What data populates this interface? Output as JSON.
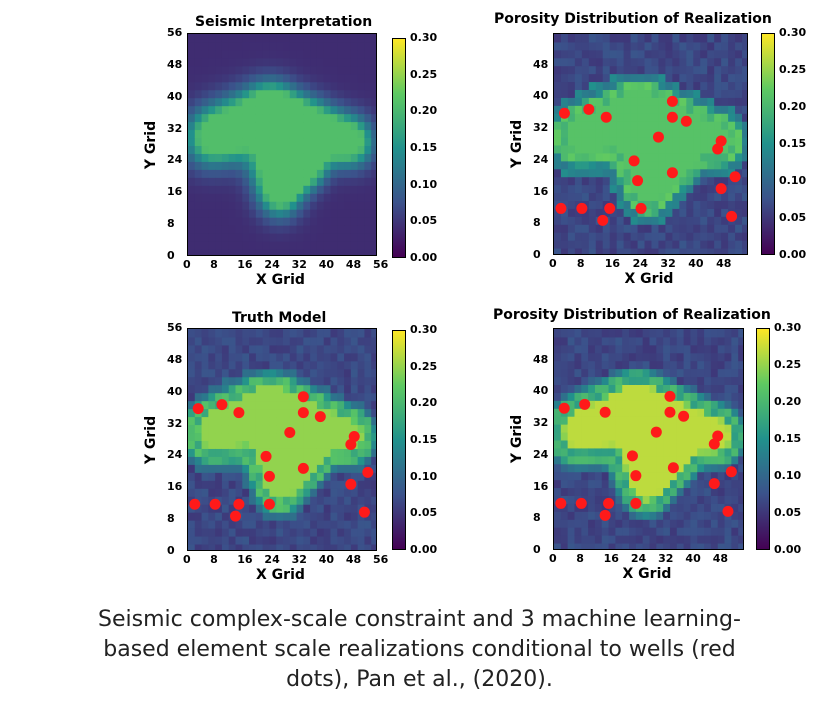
{
  "caption": {
    "line1": "Seismic complex-scale constraint and 3 machine learning-",
    "line2": "based element scale realizations conditional to wells (red",
    "line3": "dots), Pan et al., (2020)."
  },
  "chart_data": [
    {
      "type": "heatmap",
      "title": "Seismic Interpretation",
      "xlabel": "X Grid",
      "ylabel": "Y Grid",
      "xlim": [
        0,
        56
      ],
      "ylim": [
        0,
        56
      ],
      "xticks": [
        "0",
        "8",
        "16",
        "24",
        "32",
        "40",
        "48",
        "56"
      ],
      "yticks": [
        "0",
        "8",
        "16",
        "24",
        "32",
        "40",
        "48",
        "56"
      ],
      "colorbar": {
        "min": 0.0,
        "max": 0.3,
        "ticks": [
          "0.00",
          "0.05",
          "0.10",
          "0.15",
          "0.20",
          "0.25",
          "0.30"
        ],
        "colormap": "viridis"
      },
      "wells": []
    },
    {
      "type": "heatmap",
      "title": "Porosity Distribution of Realization",
      "xlabel": "X Grid",
      "ylabel": "Y Grid",
      "xlim": [
        0,
        56
      ],
      "ylim": [
        0,
        56
      ],
      "xticks": [
        "0",
        "8",
        "16",
        "24",
        "32",
        "40",
        "48"
      ],
      "yticks": [
        "0",
        "8",
        "16",
        "24",
        "32",
        "40",
        "48"
      ],
      "colorbar": {
        "min": 0.0,
        "max": 0.3,
        "ticks": [
          "0.00",
          "0.05",
          "0.10",
          "0.15",
          "0.20",
          "0.25",
          "0.30"
        ],
        "colormap": "viridis"
      },
      "wells": [
        [
          3,
          36
        ],
        [
          10,
          37
        ],
        [
          15,
          35
        ],
        [
          16,
          12
        ],
        [
          14,
          9
        ],
        [
          2,
          12
        ],
        [
          8,
          12
        ],
        [
          23,
          24
        ],
        [
          24,
          19
        ],
        [
          25,
          12
        ],
        [
          30,
          30
        ],
        [
          34,
          39
        ],
        [
          34,
          35
        ],
        [
          38,
          34
        ],
        [
          34,
          21
        ],
        [
          48,
          29
        ],
        [
          47,
          27
        ],
        [
          48,
          17
        ],
        [
          52,
          20
        ],
        [
          51,
          10
        ]
      ]
    },
    {
      "type": "heatmap",
      "title": "Truth Model",
      "xlabel": "X Grid",
      "ylabel": "Y Grid",
      "xlim": [
        0,
        56
      ],
      "ylim": [
        0,
        56
      ],
      "xticks": [
        "0",
        "8",
        "16",
        "24",
        "32",
        "40",
        "48",
        "56"
      ],
      "yticks": [
        "0",
        "8",
        "16",
        "24",
        "32",
        "40",
        "48",
        "56"
      ],
      "colorbar": {
        "min": 0.0,
        "max": 0.3,
        "ticks": [
          "0.00",
          "0.05",
          "0.10",
          "0.15",
          "0.20",
          "0.25",
          "0.30"
        ],
        "colormap": "viridis"
      },
      "wells": [
        [
          3,
          36
        ],
        [
          10,
          37
        ],
        [
          15,
          35
        ],
        [
          15,
          12
        ],
        [
          14,
          9
        ],
        [
          2,
          12
        ],
        [
          8,
          12
        ],
        [
          23,
          24
        ],
        [
          24,
          19
        ],
        [
          24,
          12
        ],
        [
          30,
          30
        ],
        [
          34,
          39
        ],
        [
          34,
          35
        ],
        [
          39,
          34
        ],
        [
          34,
          21
        ],
        [
          49,
          29
        ],
        [
          48,
          27
        ],
        [
          48,
          17
        ],
        [
          53,
          20
        ],
        [
          52,
          10
        ]
      ]
    },
    {
      "type": "heatmap",
      "title": "Porosity Distribution of Realization",
      "xlabel": "X Grid",
      "ylabel": "Y Grid",
      "xlim": [
        0,
        56
      ],
      "ylim": [
        0,
        56
      ],
      "xticks": [
        "0",
        "8",
        "16",
        "24",
        "32",
        "40",
        "48"
      ],
      "yticks": [
        "0",
        "8",
        "16",
        "24",
        "32",
        "40",
        "48"
      ],
      "colorbar": {
        "min": 0.0,
        "max": 0.3,
        "ticks": [
          "0.00",
          "0.05",
          "0.10",
          "0.15",
          "0.20",
          "0.25",
          "0.30"
        ],
        "colormap": "viridis"
      },
      "wells": [
        [
          3,
          36
        ],
        [
          9,
          37
        ],
        [
          15,
          35
        ],
        [
          16,
          12
        ],
        [
          15,
          9
        ],
        [
          2,
          12
        ],
        [
          8,
          12
        ],
        [
          23,
          24
        ],
        [
          24,
          19
        ],
        [
          24,
          12
        ],
        [
          30,
          30
        ],
        [
          34,
          39
        ],
        [
          34,
          35
        ],
        [
          38,
          34
        ],
        [
          35,
          21
        ],
        [
          48,
          29
        ],
        [
          47,
          27
        ],
        [
          47,
          17
        ],
        [
          52,
          20
        ],
        [
          51,
          10
        ]
      ]
    }
  ]
}
